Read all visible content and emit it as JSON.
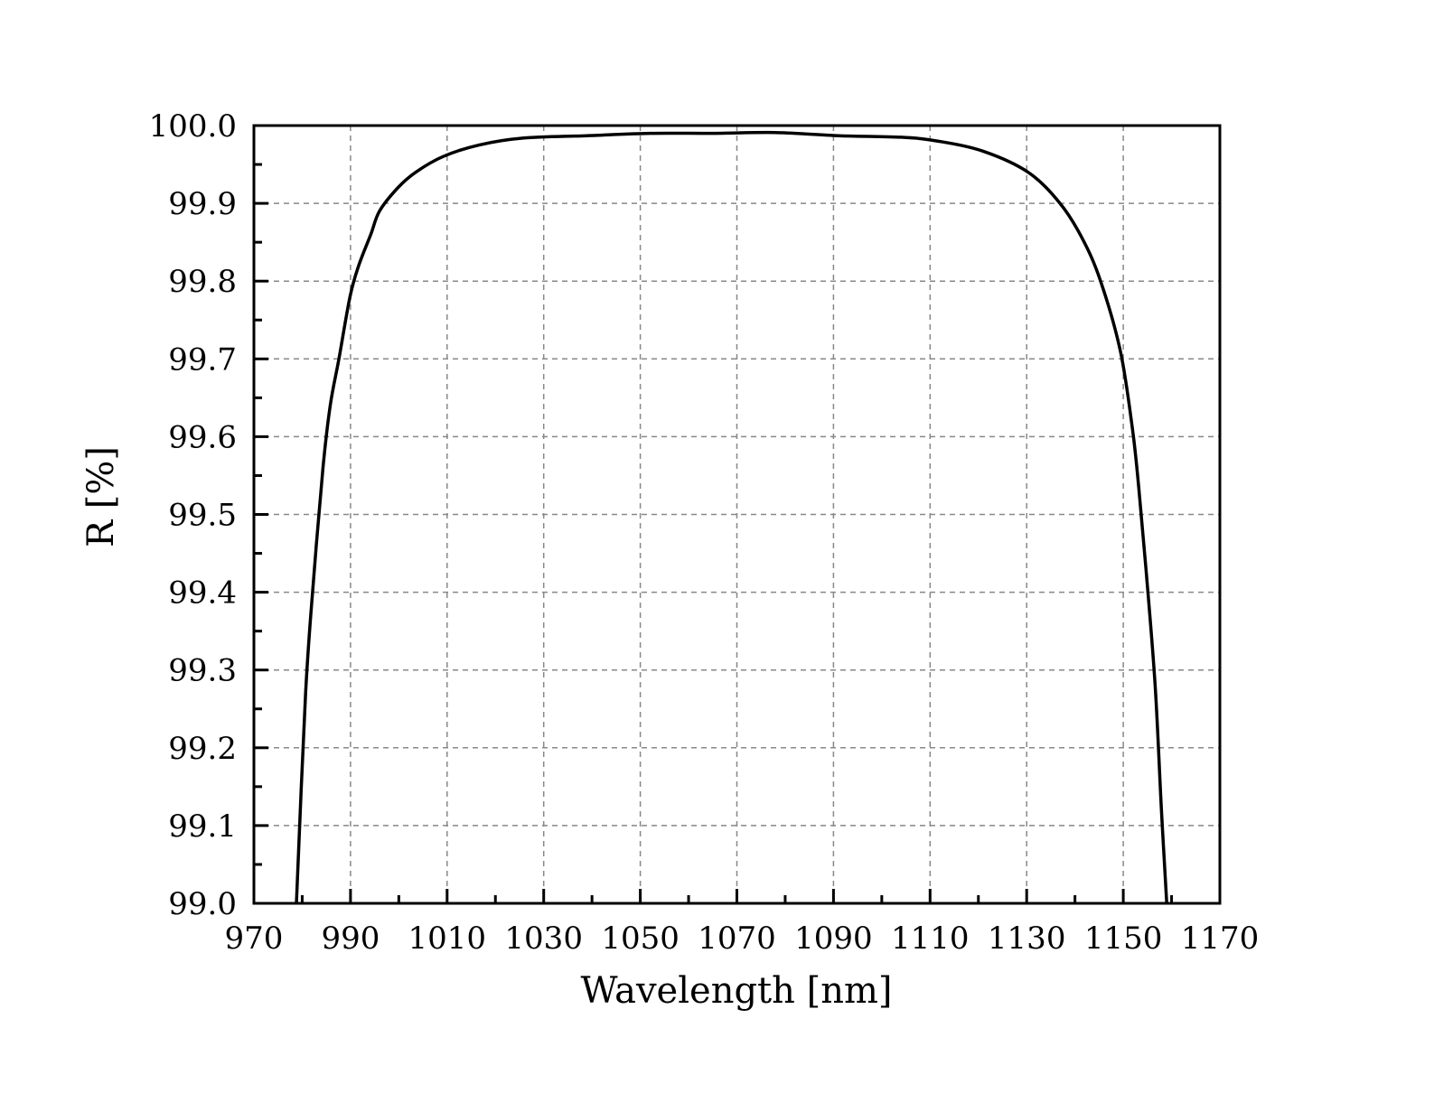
{
  "chart_data": {
    "type": "line",
    "title": "",
    "xlabel": "Wavelength [nm]",
    "ylabel": "R [%]",
    "xlim": [
      970,
      1170
    ],
    "ylim": [
      99.0,
      100.0
    ],
    "x_ticks": [
      "970",
      "990",
      "1010",
      "1030",
      "1050",
      "1070",
      "1090",
      "1110",
      "1130",
      "1150",
      "1170"
    ],
    "x_tick_values": [
      970,
      990,
      1010,
      1030,
      1050,
      1070,
      1090,
      1110,
      1130,
      1150,
      1170
    ],
    "y_ticks": [
      "99.0",
      "99.1",
      "99.2",
      "99.3",
      "99.4",
      "99.5",
      "99.6",
      "99.7",
      "99.8",
      "99.9",
      "100.0"
    ],
    "y_tick_values": [
      99.0,
      99.1,
      99.2,
      99.3,
      99.4,
      99.5,
      99.6,
      99.7,
      99.8,
      99.9,
      100.0
    ],
    "x_minor_step": 10,
    "y_minor_step": 0.05,
    "grid": true,
    "line_color": "#000000",
    "series": [
      {
        "name": "R",
        "x": [
          978.8,
          980.7,
          982.4,
          984.3,
          985.8,
          987.6,
          989.9,
          991.7,
          994.2,
          996.0,
          999.8,
          1003.5,
          1009.1,
          1016.6,
          1025.9,
          1039,
          1052,
          1065,
          1078,
          1091,
          1104,
          1111.6,
          1121,
          1130.3,
          1136.9,
          1141.5,
          1145.3,
          1149.4,
          1151.9,
          1153.2,
          1154.7,
          1156.6,
          1157.9,
          1159.0
        ],
        "y": [
          99.0,
          99.27,
          99.42,
          99.56,
          99.64,
          99.7,
          99.78,
          99.82,
          99.86,
          99.89,
          99.92,
          99.94,
          99.96,
          99.975,
          99.984,
          99.987,
          99.99,
          99.99,
          99.991,
          99.987,
          99.985,
          99.98,
          99.967,
          99.94,
          99.9,
          99.855,
          99.8,
          99.71,
          99.61,
          99.535,
          99.43,
          99.28,
          99.12,
          99.0
        ]
      }
    ]
  }
}
